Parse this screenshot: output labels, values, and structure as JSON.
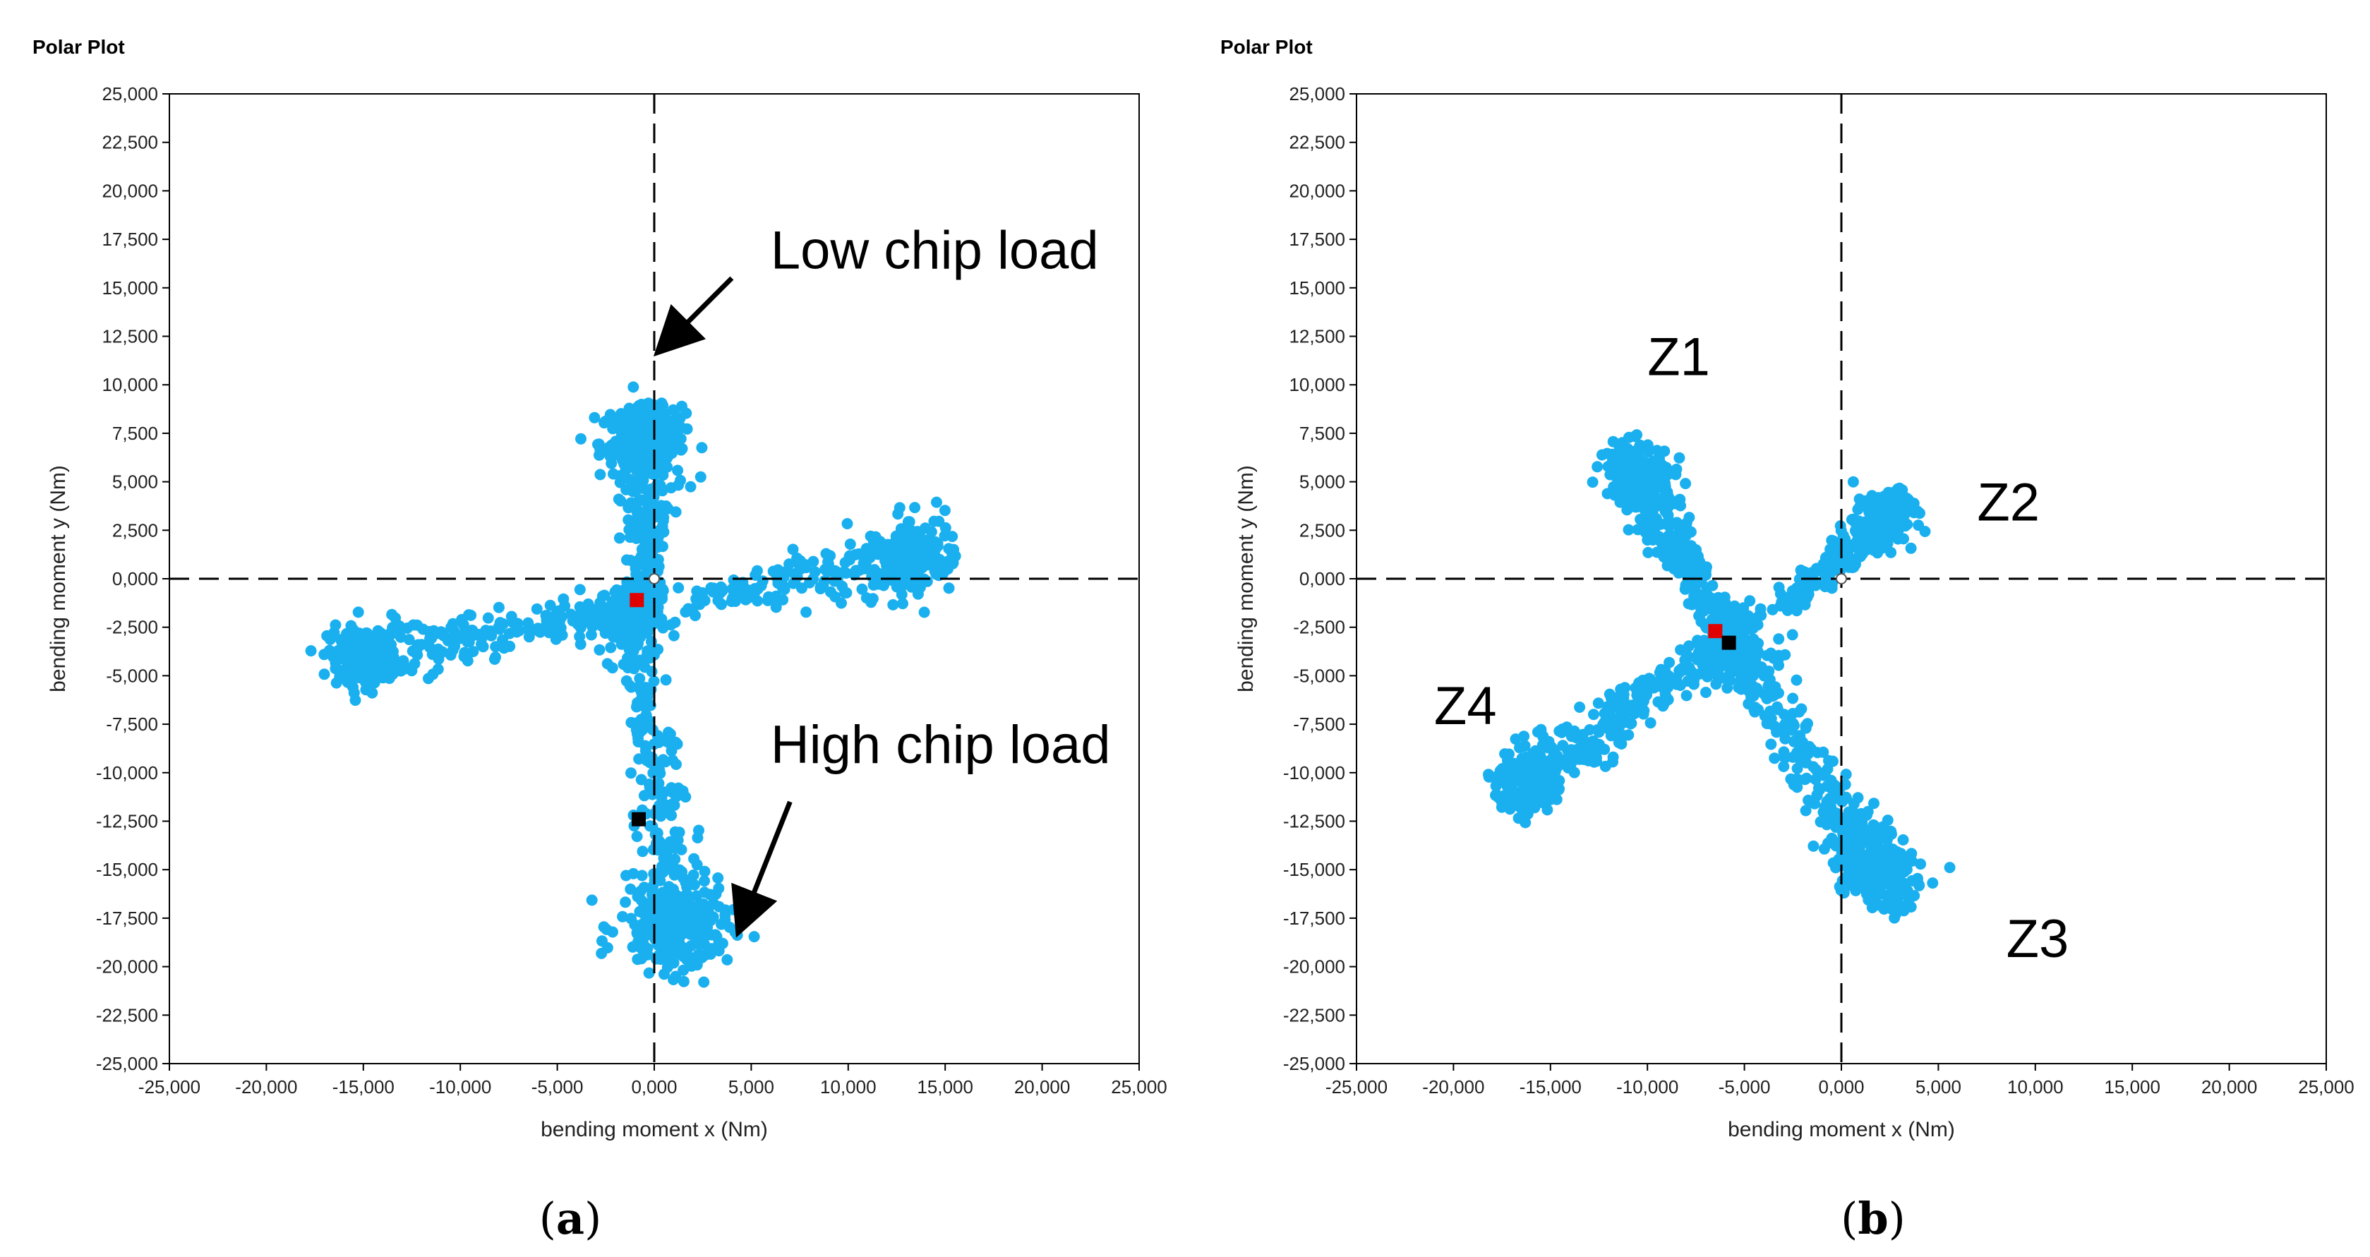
{
  "chart_data": [
    {
      "type": "scatter",
      "title": "Polar Plot",
      "xlabel": "bending moment x (Nm)",
      "ylabel": "bending moment y (Nm)",
      "xlim": [
        -25000,
        25000
      ],
      "ylim": [
        -25000,
        25000
      ],
      "xticks": [
        "-25,000",
        "-20,000",
        "-15,000",
        "-10,000",
        "-5,000",
        "0,000",
        "5,000",
        "10,000",
        "15,000",
        "20,000",
        "25,000"
      ],
      "yticks": [
        "25,000",
        "22,500",
        "20,000",
        "17,500",
        "15,000",
        "12,500",
        "10,000",
        "7,500",
        "5,000",
        "2,500",
        "0,000",
        "-2,500",
        "-5,000",
        "-7,500",
        "-10,000",
        "-12,500",
        "-15,000",
        "-17,500",
        "-20,000",
        "-22,500",
        "-25,000"
      ],
      "crosshair": [
        0,
        0
      ],
      "point_color": "#1AB0EF",
      "arms": [
        {
          "name": "up",
          "from": [
            -200,
            -800
          ],
          "to": [
            -600,
            9000
          ],
          "spread": 900,
          "count": 260,
          "cluster": [
            -600,
            7000
          ],
          "cluster_count": 200,
          "cluster_spread": 1100
        },
        {
          "name": "right",
          "from": [
            1500,
            -1200
          ],
          "to": [
            15500,
            1500
          ],
          "spread": 1100,
          "count": 200,
          "cluster": [
            13000,
            1000
          ],
          "cluster_count": 160,
          "cluster_spread": 1000
        },
        {
          "name": "left",
          "from": [
            -1500,
            -1500
          ],
          "to": [
            -16500,
            -4200
          ],
          "spread": 900,
          "count": 200,
          "cluster": [
            -15000,
            -4000
          ],
          "cluster_count": 180,
          "cluster_spread": 900
        },
        {
          "name": "down",
          "from": [
            -1000,
            -3000
          ],
          "to": [
            1800,
            -20000
          ],
          "spread": 1000,
          "count": 240,
          "cluster": [
            1000,
            -18000
          ],
          "cluster_count": 220,
          "cluster_spread": 1400
        }
      ],
      "center_cluster": {
        "center": [
          -1500,
          -2000
        ],
        "count": 160,
        "spread": 900
      },
      "markers": [
        {
          "name": "mean-red",
          "color": "#E00000",
          "x": -900,
          "y": -1100
        },
        {
          "name": "mean-black",
          "color": "#000000",
          "x": -800,
          "y": -12400
        }
      ],
      "annotations": [
        {
          "text": "Low chip load",
          "x": 6000,
          "y": 16000,
          "arrow_from": [
            4000,
            15500
          ],
          "arrow_to": [
            500,
            12000
          ]
        },
        {
          "text": "High chip load",
          "x": 6000,
          "y": -9500,
          "arrow_from": [
            7000,
            -11500
          ],
          "arrow_to": [
            4500,
            -17800
          ]
        }
      ]
    },
    {
      "type": "scatter",
      "title": "Polar Plot",
      "xlabel": "bending moment x (Nm)",
      "ylabel": "bending moment y (Nm)",
      "xlim": [
        -25000,
        25000
      ],
      "ylim": [
        -25000,
        25000
      ],
      "xticks": [
        "-25,000",
        "-20,000",
        "-15,000",
        "-10,000",
        "-5,000",
        "0,000",
        "5,000",
        "10,000",
        "15,000",
        "20,000",
        "25,000"
      ],
      "yticks": [
        "25,000",
        "22,500",
        "20,000",
        "17,500",
        "15,000",
        "12,500",
        "10,000",
        "7,500",
        "5,000",
        "2,500",
        "0,000",
        "-2,500",
        "-5,000",
        "-7,500",
        "-10,000",
        "-12,500",
        "-15,000",
        "-17,500",
        "-20,000",
        "-22,500",
        "-25,000"
      ],
      "crosshair": [
        0,
        0
      ],
      "point_color": "#1AB0EF",
      "arms": [
        {
          "name": "Z1",
          "from": [
            -6500,
            -2000
          ],
          "to": [
            -11500,
            7000
          ],
          "spread": 800,
          "count": 280,
          "cluster": [
            -10500,
            5500
          ],
          "cluster_count": 140,
          "cluster_spread": 900
        },
        {
          "name": "Z2",
          "from": [
            -3000,
            -1500
          ],
          "to": [
            3500,
            4200
          ],
          "spread": 650,
          "count": 220,
          "cluster": [
            2000,
            3000
          ],
          "cluster_count": 100,
          "cluster_spread": 700
        },
        {
          "name": "Z3",
          "from": [
            -5500,
            -4000
          ],
          "to": [
            3500,
            -17000
          ],
          "spread": 900,
          "count": 300,
          "cluster": [
            1500,
            -14500
          ],
          "cluster_count": 140,
          "cluster_spread": 1000
        },
        {
          "name": "Z4",
          "from": [
            -6500,
            -3500
          ],
          "to": [
            -17500,
            -11500
          ],
          "spread": 900,
          "count": 280,
          "cluster": [
            -16000,
            -10500
          ],
          "cluster_count": 120,
          "cluster_spread": 900
        }
      ],
      "center_cluster": {
        "center": [
          -5500,
          -3500
        ],
        "count": 220,
        "spread": 1000
      },
      "markers": [
        {
          "name": "mean-red",
          "color": "#E00000",
          "x": -6500,
          "y": -2700
        },
        {
          "name": "mean-black",
          "color": "#000000",
          "x": -5800,
          "y": -3300
        }
      ],
      "annotations": [
        {
          "text": "Z1",
          "x": -10000,
          "y": 10500
        },
        {
          "text": "Z2",
          "x": 7000,
          "y": 3000
        },
        {
          "text": "Z3",
          "x": 8500,
          "y": -19500
        },
        {
          "text": "Z4",
          "x": -21000,
          "y": -7500
        }
      ]
    }
  ],
  "captions": [
    {
      "open": "(",
      "letter": "a",
      "close": ")"
    },
    {
      "open": "(",
      "letter": "b",
      "close": ")"
    }
  ]
}
